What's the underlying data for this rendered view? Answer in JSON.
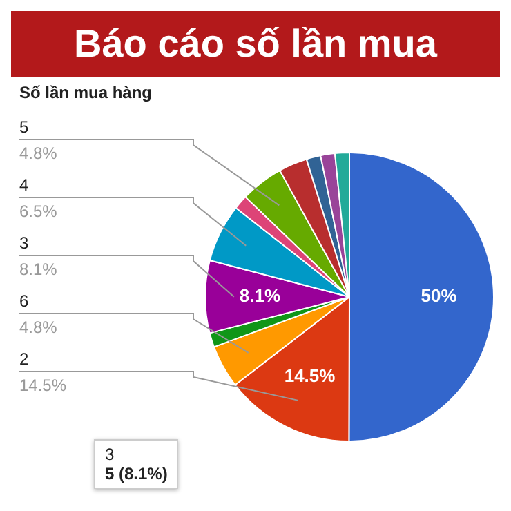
{
  "chart_data": {
    "type": "pie",
    "title": "Báo cáo số lần mua",
    "subtitle": "Số lần mua hàng",
    "categories": [
      null,
      "2",
      "6",
      null,
      "3",
      "4",
      null,
      "5",
      null,
      null,
      null,
      null
    ],
    "values": [
      50,
      14.5,
      4.8,
      1.6,
      8.1,
      6.5,
      1.6,
      4.8,
      3.2,
      1.6,
      1.6,
      1.6
    ],
    "value_labels": [
      "50%",
      "14.5%",
      "4.8%",
      null,
      "8.1%",
      "6.5%",
      null,
      "4.8%",
      null,
      null,
      null,
      null
    ],
    "colors": [
      "#3366cc",
      "#dc3912",
      "#ff9900",
      "#109618",
      "#990099",
      "#0099c6",
      "#dd4477",
      "#66aa00",
      "#b82e2e",
      "#316395",
      "#994499",
      "#22aa99"
    ],
    "annotations": [
      "3",
      "5 (8.1%)"
    ],
    "legend": false
  }
}
